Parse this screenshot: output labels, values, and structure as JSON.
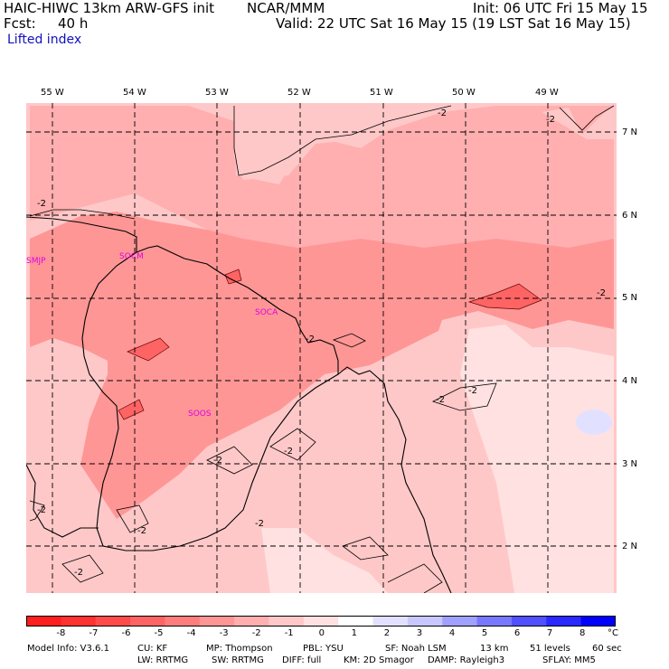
{
  "header": {
    "model_title": "HAIC-HIWC 13km ARW-GFS init",
    "org": "NCAR/MMM",
    "init": "Init: 06 UTC Fri 15 May 15",
    "fcst_label": "Fcst:",
    "fcst_value": "40 h",
    "valid": "Valid: 22 UTC Sat 16 May 15 (19 LST Sat 16 May 15)",
    "field": "Lifted index"
  },
  "map": {
    "lon_labels": [
      "55 W",
      "54 W",
      "53 W",
      "52 W",
      "51 W",
      "50 W",
      "49 W"
    ],
    "lat_labels": [
      "7 N",
      "6 N",
      "5 N",
      "4 N",
      "3 N",
      "2 N"
    ],
    "stations": [
      "SMJP",
      "SOCM",
      "SOCA",
      "SOOS"
    ],
    "contour_label": "-2"
  },
  "colorbar": {
    "colors": [
      "#ff1e1e",
      "#ff3232",
      "#ff4a4a",
      "#ff6464",
      "#ff7d7d",
      "#ff9696",
      "#ffafaf",
      "#ffc8c8",
      "#ffe1e1",
      "#ffffff",
      "#e1e1ff",
      "#c8c8ff",
      "#a0a0ff",
      "#7878ff",
      "#5050ff",
      "#2828ff",
      "#0000ff"
    ],
    "ticks": [
      "-8",
      "-7",
      "-6",
      "-5",
      "-4",
      "-3",
      "-2",
      "-1",
      "0",
      "1",
      "2",
      "3",
      "4",
      "5",
      "6",
      "7",
      "8"
    ],
    "unit": "°C"
  },
  "footer": {
    "line1": [
      "Model Info: V3.6.1",
      "CU: KF",
      "MP: Thompson",
      "PBL: YSU",
      "SF: Noah LSM",
      "13 km",
      "51 levels",
      "60 sec"
    ],
    "line2": [
      "LW: RRTMG",
      "SW: RRTMG",
      "DIFF: full",
      "KM: 2D Smagor",
      "DAMP: Rayleigh3",
      "SFLAY: MM5"
    ]
  }
}
